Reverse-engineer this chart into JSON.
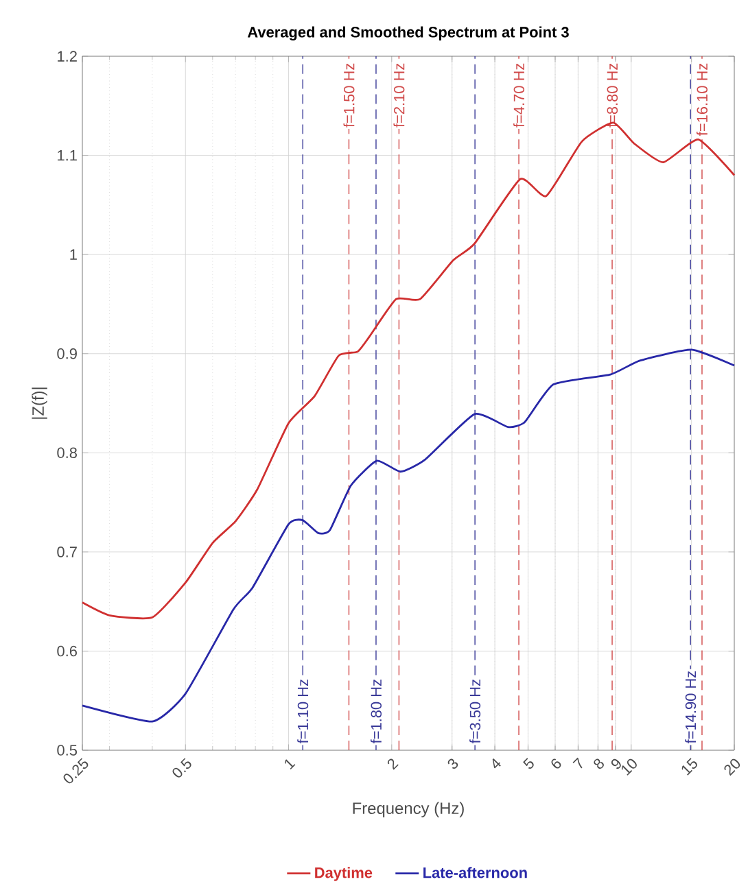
{
  "chart_data": {
    "type": "line",
    "title": "Averaged and Smoothed Spectrum at Point 3",
    "xlabel": "Frequency (Hz)",
    "ylabel": "|Z(f)|",
    "log": "x",
    "xlim": [
      0.25,
      20
    ],
    "ylim": [
      0.5,
      1.2
    ],
    "xticks": [
      0.25,
      0.5,
      1,
      2,
      3,
      4,
      5,
      6,
      7,
      8,
      9,
      10,
      15,
      20
    ],
    "yticks": [
      0.5,
      0.6,
      0.7,
      0.8,
      0.9,
      1,
      1.1,
      1.2
    ],
    "grid": true,
    "legend": "bottom",
    "line_style": "solid",
    "marker": "none",
    "series": [
      {
        "name": "Daytime",
        "color": "#d03030",
        "x": [
          0.25,
          0.3,
          0.4,
          0.5,
          0.6,
          0.7,
          0.81,
          1.0,
          1.19,
          1.4,
          1.59,
          1.72,
          2.06,
          2.42,
          3.02,
          3.49,
          4.74,
          5.65,
          7.18,
          8.86,
          10.2,
          12.4,
          15.7,
          20
        ],
        "values": [
          0.649,
          0.636,
          0.634,
          0.669,
          0.709,
          0.731,
          0.763,
          0.83,
          0.857,
          0.898,
          0.902,
          0.917,
          0.955,
          0.955,
          0.994,
          1.011,
          1.076,
          1.059,
          1.114,
          1.133,
          1.112,
          1.093,
          1.116,
          1.08
        ]
      },
      {
        "name": "Late-afternoon",
        "color": "#2828a8",
        "x": [
          0.25,
          0.4,
          0.5,
          0.69,
          0.785,
          1.0,
          1.1,
          1.22,
          1.32,
          1.52,
          1.81,
          2.12,
          2.5,
          3.49,
          4.37,
          4.89,
          5.93,
          8.7,
          10.6,
          15.0,
          20
        ],
        "values": [
          0.545,
          0.529,
          0.557,
          0.642,
          0.664,
          0.728,
          0.732,
          0.719,
          0.722,
          0.767,
          0.792,
          0.781,
          0.793,
          0.839,
          0.826,
          0.831,
          0.869,
          0.879,
          0.893,
          0.904,
          0.888
        ]
      }
    ],
    "ref_lines": [
      {
        "axis": "x",
        "value": 1.5,
        "label": "f=1.50 Hz",
        "color": "#d04848",
        "line_style": "dashed"
      },
      {
        "axis": "x",
        "value": 2.1,
        "label": "f=2.10 Hz",
        "color": "#d04848",
        "line_style": "dashed"
      },
      {
        "axis": "x",
        "value": 4.7,
        "label": "f=4.70 Hz",
        "color": "#d04848",
        "line_style": "dashed"
      },
      {
        "axis": "x",
        "value": 8.8,
        "label": "f=8.80 Hz",
        "color": "#d04848",
        "line_style": "dashed"
      },
      {
        "axis": "x",
        "value": 16.1,
        "label": "f=16.10 Hz",
        "color": "#d04848",
        "line_style": "dashed"
      },
      {
        "axis": "x",
        "value": 1.1,
        "label": "f=1.10 Hz",
        "color": "#3a3a98",
        "line_style": "dashed"
      },
      {
        "axis": "x",
        "value": 1.8,
        "label": "f=1.80 Hz",
        "color": "#3a3a98",
        "line_style": "dashed"
      },
      {
        "axis": "x",
        "value": 3.5,
        "label": "f=3.50 Hz",
        "color": "#3a3a98",
        "line_style": "dashed"
      },
      {
        "axis": "x",
        "value": 14.9,
        "label": "f=14.90 Hz",
        "color": "#3a3a98",
        "line_style": "dashed"
      }
    ]
  }
}
